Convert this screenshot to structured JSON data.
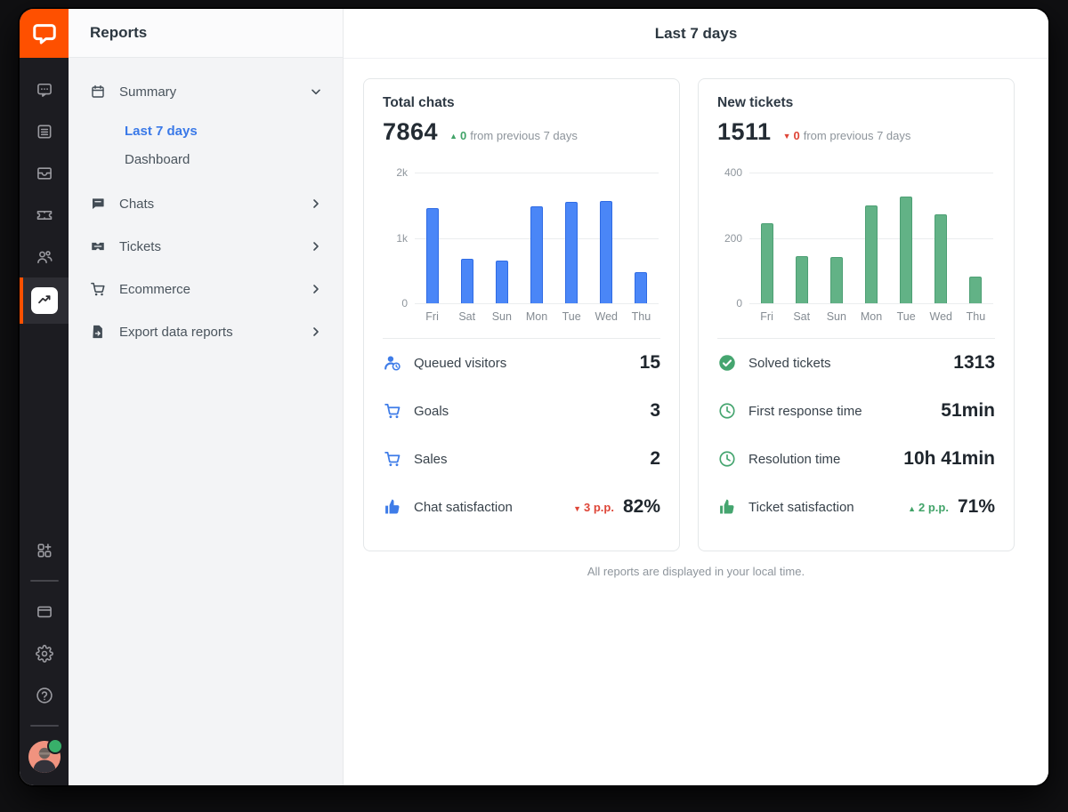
{
  "app": {
    "name": "LiveChat"
  },
  "rail": {
    "items": [
      {
        "id": "chats",
        "icon": "chat-bubble-icon",
        "active": false
      },
      {
        "id": "archives",
        "icon": "archives-icon",
        "active": false
      },
      {
        "id": "traffic",
        "icon": "inbox-icon",
        "active": false
      },
      {
        "id": "tickets",
        "icon": "ticket-icon",
        "active": false
      },
      {
        "id": "team",
        "icon": "team-icon",
        "active": false
      },
      {
        "id": "reports",
        "icon": "reports-icon",
        "active": true
      }
    ],
    "bottom_items": [
      {
        "id": "apps",
        "icon": "apps-plus-icon"
      },
      {
        "id": "divider"
      },
      {
        "id": "billing",
        "icon": "credit-card-icon"
      },
      {
        "id": "settings",
        "icon": "gear-icon"
      },
      {
        "id": "help",
        "icon": "help-circle-icon"
      },
      {
        "id": "divider"
      },
      {
        "id": "profile",
        "icon": "avatar",
        "status": "online"
      }
    ]
  },
  "sidebar": {
    "title": "Reports",
    "summary": {
      "label": "Summary",
      "icon": "calendar-icon",
      "expanded": true,
      "children": [
        {
          "label": "Last 7 days",
          "active": true
        },
        {
          "label": "Dashboard",
          "active": false
        }
      ]
    },
    "groups": [
      {
        "label": "Chats",
        "icon": "chat-flag-icon"
      },
      {
        "label": "Tickets",
        "icon": "ticket-solid-icon"
      },
      {
        "label": "Ecommerce",
        "icon": "cart-icon"
      },
      {
        "label": "Export data reports",
        "icon": "export-file-icon"
      }
    ]
  },
  "main": {
    "header_title": "Last 7 days",
    "footer_note": "All reports are displayed in your local time.",
    "cards": [
      {
        "title": "Total chats",
        "total": "7864",
        "delta": {
          "direction": "up",
          "value": "0",
          "text": "from previous 7 days"
        },
        "stat_icon_color": "#3e7ce8",
        "stats": [
          {
            "icon": "queued-visitor-icon",
            "label": "Queued visitors",
            "value": "15"
          },
          {
            "icon": "cart-icon",
            "label": "Goals",
            "value": "3"
          },
          {
            "icon": "cart-icon",
            "label": "Sales",
            "value": "2"
          },
          {
            "icon": "thumb-up-icon",
            "label": "Chat satisfaction",
            "delta": {
              "direction": "down",
              "text": "3 p.p."
            },
            "value": "82%"
          }
        ]
      },
      {
        "title": "New tickets",
        "total": "1511",
        "delta": {
          "direction": "down",
          "value": "0",
          "text": "from previous 7 days"
        },
        "stat_icon_color": "#45a56f",
        "stats": [
          {
            "icon": "check-circle-icon",
            "label": "Solved tickets",
            "value": "1313"
          },
          {
            "icon": "clock-icon",
            "label": "First response time",
            "value": "51min"
          },
          {
            "icon": "clock-icon",
            "label": "Resolution time",
            "value": "10h 41min"
          },
          {
            "icon": "thumb-up-icon",
            "label": "Ticket satisfaction",
            "delta": {
              "direction": "up",
              "text": "2 p.p."
            },
            "value": "71%"
          }
        ]
      }
    ]
  },
  "chart_data": [
    {
      "type": "bar",
      "title": "Total chats",
      "categories": [
        "Fri",
        "Sat",
        "Sun",
        "Mon",
        "Tue",
        "Wed",
        "Thu"
      ],
      "values": [
        1460,
        675,
        650,
        1485,
        1555,
        1565,
        474
      ],
      "ylim": [
        0,
        2000
      ],
      "yticks": [
        "2k",
        "1k",
        "0"
      ],
      "grid": true,
      "bar_color": "#4a86f7",
      "bar_border": "#2f6be4"
    },
    {
      "type": "bar",
      "title": "New tickets",
      "categories": [
        "Fri",
        "Sat",
        "Sun",
        "Mon",
        "Tue",
        "Wed",
        "Thu"
      ],
      "values": [
        245,
        145,
        142,
        300,
        326,
        271,
        82
      ],
      "ylim": [
        0,
        400
      ],
      "yticks": [
        "400",
        "200",
        "0"
      ],
      "grid": true,
      "bar_color": "#62b286",
      "bar_border": "#4d9f74"
    }
  ],
  "colors": {
    "brand_orange": "#fe5000",
    "rail_bg": "#1c1c21",
    "sidebar_bg": "#f3f4f6",
    "active_blue": "#3a79e8",
    "positive_green": "#41a368",
    "negative_red": "#de4537"
  }
}
